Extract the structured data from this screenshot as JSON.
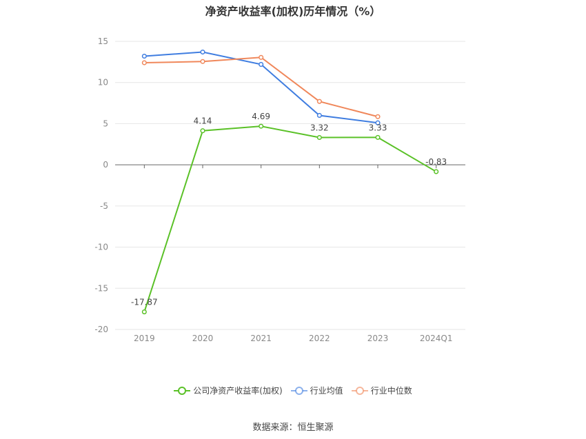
{
  "title": "净资产收益率(加权)历年情况（%）",
  "source": "数据来源：恒生聚源",
  "chart_data": {
    "type": "line",
    "title": "净资产收益率(加权)历年情况（%）",
    "categories": [
      "2019",
      "2020",
      "2021",
      "2022",
      "2023",
      "2024Q1"
    ],
    "ylim": [
      -20,
      15
    ],
    "yticks": [
      15,
      10,
      5,
      0,
      -5,
      -10,
      -15,
      -20
    ],
    "grid": true,
    "legend_position": "bottom",
    "series": [
      {
        "name": "公司净资产收益率(加权)",
        "color": "#5ac127",
        "values": [
          -17.87,
          4.14,
          4.69,
          3.32,
          3.33,
          -0.83
        ],
        "labels": [
          "-17.87",
          "4.14",
          "4.69",
          "3.32",
          "3.33",
          "-0.83"
        ]
      },
      {
        "name": "行业均值",
        "color": "#3f7de0",
        "values": [
          13.2,
          13.7,
          12.2,
          6.0,
          5.1,
          null
        ]
      },
      {
        "name": "行业中位数",
        "color": "#f0875a",
        "values": [
          12.4,
          12.55,
          13.05,
          7.7,
          5.85,
          null
        ]
      }
    ]
  }
}
